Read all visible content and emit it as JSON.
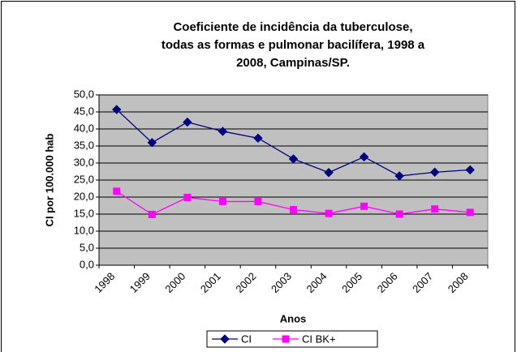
{
  "chart_data": {
    "type": "line",
    "title": [
      "Coeficiente de incidência da tuberculose,",
      "todas as formas e pulmonar bacilífera, 1998 a",
      "2008, Campinas/SP."
    ],
    "xlabel": "Anos",
    "ylabel": "CI por 100.000 hab",
    "categories": [
      "1998",
      "1999",
      "2000",
      "2001",
      "2002",
      "2003",
      "2004",
      "2005",
      "2006",
      "2007",
      "2008"
    ],
    "series": [
      {
        "name": "CI",
        "color": "#000080",
        "marker": "diamond",
        "values": [
          45.7,
          36.0,
          42.0,
          39.3,
          37.3,
          31.2,
          27.2,
          31.8,
          26.2,
          27.3,
          28.0
        ]
      },
      {
        "name": "CI BK+",
        "color": "#ff00ff",
        "marker": "square",
        "values": [
          21.7,
          14.9,
          19.9,
          18.7,
          18.7,
          16.3,
          15.2,
          17.3,
          15.0,
          16.5,
          15.5
        ]
      }
    ],
    "ylim": [
      0,
      50
    ],
    "yticks": [
      {
        "value": 0,
        "label": "0,0"
      },
      {
        "value": 5,
        "label": "5,0"
      },
      {
        "value": 10,
        "label": "10,0"
      },
      {
        "value": 15,
        "label": "15,0"
      },
      {
        "value": 20,
        "label": "20,0"
      },
      {
        "value": 25,
        "label": "25,0"
      },
      {
        "value": 30,
        "label": "30,0"
      },
      {
        "value": 35,
        "label": "35,0"
      },
      {
        "value": 40,
        "label": "40,0"
      },
      {
        "value": 45,
        "label": "45,0"
      },
      {
        "value": 50,
        "label": "50,0"
      }
    ],
    "grid": true,
    "legend": "bottom",
    "plot_background": "#c0c0c0"
  }
}
